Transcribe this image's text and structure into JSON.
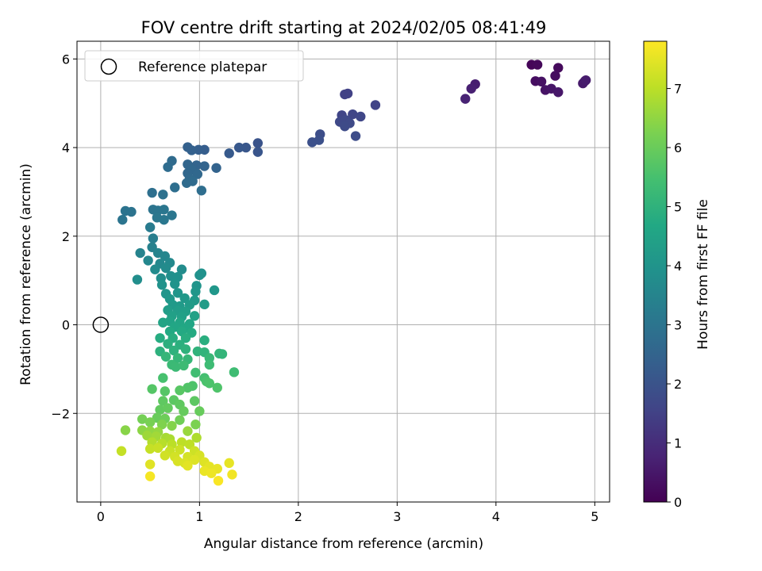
{
  "chart_data": {
    "type": "scatter",
    "title": "FOV centre drift starting at 2024/02/05 08:41:49",
    "xlabel": "Angular distance from reference (arcmin)",
    "ylabel": "Rotation from reference (arcmin)",
    "xlim": [
      -0.24,
      5.15
    ],
    "ylim": [
      -4.0,
      6.4
    ],
    "x_ticks": [
      0,
      1,
      2,
      3,
      4,
      5
    ],
    "y_ticks": [
      -2,
      0,
      2,
      4,
      6
    ],
    "x_tick_labels": [
      "0",
      "1",
      "2",
      "3",
      "4",
      "5"
    ],
    "y_tick_labels": [
      "−2",
      "0",
      "2",
      "4",
      "6"
    ],
    "grid": true,
    "legend": {
      "placement": "top-left",
      "entries": [
        "Reference platepar"
      ]
    },
    "reference_point": {
      "x": 0,
      "y": 0,
      "label": "Reference platepar"
    },
    "colorbar": {
      "label": "Hours from first FF file",
      "colormap": "viridis",
      "range": [
        0,
        7.8
      ],
      "ticks": [
        0,
        1,
        2,
        3,
        4,
        5,
        6,
        7
      ],
      "tick_labels": [
        "0",
        "1",
        "2",
        "3",
        "4",
        "5",
        "6",
        "7"
      ]
    },
    "points": [
      {
        "x": 4.36,
        "y": 5.87,
        "h": 0.1
      },
      {
        "x": 4.42,
        "y": 5.87,
        "h": 0.15
      },
      {
        "x": 4.63,
        "y": 5.8,
        "h": 0.2
      },
      {
        "x": 4.6,
        "y": 5.62,
        "h": 0.25
      },
      {
        "x": 4.4,
        "y": 5.5,
        "h": 0.3
      },
      {
        "x": 4.46,
        "y": 5.49,
        "h": 0.35
      },
      {
        "x": 4.5,
        "y": 5.3,
        "h": 0.4
      },
      {
        "x": 4.56,
        "y": 5.33,
        "h": 0.45
      },
      {
        "x": 4.63,
        "y": 5.25,
        "h": 0.5
      },
      {
        "x": 4.9,
        "y": 5.5,
        "h": 0.5
      },
      {
        "x": 4.88,
        "y": 5.45,
        "h": 0.55
      },
      {
        "x": 4.91,
        "y": 5.52,
        "h": 0.6
      },
      {
        "x": 3.79,
        "y": 5.43,
        "h": 0.65
      },
      {
        "x": 3.75,
        "y": 5.33,
        "h": 0.7
      },
      {
        "x": 3.69,
        "y": 5.1,
        "h": 0.75
      },
      {
        "x": 2.47,
        "y": 5.2,
        "h": 1.5
      },
      {
        "x": 2.5,
        "y": 5.22,
        "h": 1.5
      },
      {
        "x": 2.78,
        "y": 4.96,
        "h": 1.55
      },
      {
        "x": 2.44,
        "y": 4.73,
        "h": 1.6
      },
      {
        "x": 2.55,
        "y": 4.75,
        "h": 1.6
      },
      {
        "x": 2.63,
        "y": 4.7,
        "h": 1.65
      },
      {
        "x": 2.42,
        "y": 4.58,
        "h": 1.7
      },
      {
        "x": 2.48,
        "y": 4.62,
        "h": 1.7
      },
      {
        "x": 2.52,
        "y": 4.55,
        "h": 1.72
      },
      {
        "x": 2.47,
        "y": 4.48,
        "h": 1.75
      },
      {
        "x": 2.58,
        "y": 4.26,
        "h": 1.8
      },
      {
        "x": 2.22,
        "y": 4.3,
        "h": 1.85
      },
      {
        "x": 2.21,
        "y": 4.17,
        "h": 1.9
      },
      {
        "x": 2.14,
        "y": 4.12,
        "h": 1.9
      },
      {
        "x": 1.59,
        "y": 4.1,
        "h": 2.0
      },
      {
        "x": 1.59,
        "y": 3.9,
        "h": 2.05
      },
      {
        "x": 1.47,
        "y": 4.0,
        "h": 2.1
      },
      {
        "x": 1.4,
        "y": 4.0,
        "h": 2.15
      },
      {
        "x": 1.3,
        "y": 3.87,
        "h": 2.2
      },
      {
        "x": 1.05,
        "y": 3.95,
        "h": 2.3
      },
      {
        "x": 0.99,
        "y": 3.95,
        "h": 2.35
      },
      {
        "x": 0.92,
        "y": 3.94,
        "h": 2.4
      },
      {
        "x": 0.88,
        "y": 4.01,
        "h": 2.4
      },
      {
        "x": 1.17,
        "y": 3.54,
        "h": 2.45
      },
      {
        "x": 1.05,
        "y": 3.58,
        "h": 2.5
      },
      {
        "x": 0.97,
        "y": 3.6,
        "h": 2.5
      },
      {
        "x": 0.88,
        "y": 3.62,
        "h": 2.55
      },
      {
        "x": 0.92,
        "y": 3.5,
        "h": 2.6
      },
      {
        "x": 0.88,
        "y": 3.42,
        "h": 2.6
      },
      {
        "x": 0.98,
        "y": 3.4,
        "h": 2.62
      },
      {
        "x": 0.9,
        "y": 3.3,
        "h": 2.65
      },
      {
        "x": 0.93,
        "y": 3.24,
        "h": 2.7
      },
      {
        "x": 0.87,
        "y": 3.2,
        "h": 2.7
      },
      {
        "x": 0.72,
        "y": 3.7,
        "h": 2.72
      },
      {
        "x": 0.68,
        "y": 3.56,
        "h": 2.75
      },
      {
        "x": 1.02,
        "y": 3.03,
        "h": 2.8
      },
      {
        "x": 0.75,
        "y": 3.1,
        "h": 2.82
      },
      {
        "x": 0.52,
        "y": 2.98,
        "h": 2.85
      },
      {
        "x": 0.63,
        "y": 2.94,
        "h": 2.9
      },
      {
        "x": 0.25,
        "y": 2.57,
        "h": 2.95
      },
      {
        "x": 0.31,
        "y": 2.55,
        "h": 2.95
      },
      {
        "x": 0.22,
        "y": 2.37,
        "h": 3.0
      },
      {
        "x": 0.53,
        "y": 2.6,
        "h": 3.0
      },
      {
        "x": 0.58,
        "y": 2.58,
        "h": 3.02
      },
      {
        "x": 0.64,
        "y": 2.6,
        "h": 3.05
      },
      {
        "x": 0.72,
        "y": 2.47,
        "h": 3.05
      },
      {
        "x": 0.57,
        "y": 2.42,
        "h": 3.08
      },
      {
        "x": 0.64,
        "y": 2.37,
        "h": 3.1
      },
      {
        "x": 0.5,
        "y": 2.2,
        "h": 3.2
      },
      {
        "x": 0.53,
        "y": 1.95,
        "h": 3.3
      },
      {
        "x": 0.52,
        "y": 1.75,
        "h": 3.4
      },
      {
        "x": 0.4,
        "y": 1.62,
        "h": 3.45
      },
      {
        "x": 0.58,
        "y": 1.62,
        "h": 3.5
      },
      {
        "x": 0.65,
        "y": 1.55,
        "h": 3.55
      },
      {
        "x": 0.48,
        "y": 1.45,
        "h": 3.6
      },
      {
        "x": 0.6,
        "y": 1.38,
        "h": 3.62
      },
      {
        "x": 0.7,
        "y": 1.4,
        "h": 3.65
      },
      {
        "x": 0.55,
        "y": 1.25,
        "h": 3.7
      },
      {
        "x": 0.66,
        "y": 1.28,
        "h": 3.72
      },
      {
        "x": 0.82,
        "y": 1.25,
        "h": 3.75
      },
      {
        "x": 0.37,
        "y": 1.02,
        "h": 3.8
      },
      {
        "x": 0.61,
        "y": 1.05,
        "h": 3.82
      },
      {
        "x": 0.71,
        "y": 1.1,
        "h": 3.85
      },
      {
        "x": 0.78,
        "y": 1.08,
        "h": 3.88
      },
      {
        "x": 1.0,
        "y": 1.12,
        "h": 3.9
      },
      {
        "x": 1.02,
        "y": 1.16,
        "h": 3.92
      },
      {
        "x": 0.62,
        "y": 0.9,
        "h": 3.95
      },
      {
        "x": 0.75,
        "y": 0.92,
        "h": 3.97
      },
      {
        "x": 0.97,
        "y": 0.88,
        "h": 4.0
      },
      {
        "x": 0.66,
        "y": 0.7,
        "h": 4.02
      },
      {
        "x": 0.78,
        "y": 0.72,
        "h": 4.05
      },
      {
        "x": 0.96,
        "y": 0.75,
        "h": 4.07
      },
      {
        "x": 1.15,
        "y": 0.78,
        "h": 4.1
      },
      {
        "x": 0.7,
        "y": 0.58,
        "h": 4.12
      },
      {
        "x": 0.85,
        "y": 0.6,
        "h": 4.15
      },
      {
        "x": 0.95,
        "y": 0.55,
        "h": 4.17
      },
      {
        "x": 0.73,
        "y": 0.45,
        "h": 4.2
      },
      {
        "x": 0.8,
        "y": 0.42,
        "h": 4.22
      },
      {
        "x": 0.9,
        "y": 0.45,
        "h": 4.25
      },
      {
        "x": 1.05,
        "y": 0.46,
        "h": 4.27
      },
      {
        "x": 0.68,
        "y": 0.33,
        "h": 4.3
      },
      {
        "x": 0.78,
        "y": 0.32,
        "h": 4.32
      },
      {
        "x": 0.86,
        "y": 0.3,
        "h": 4.35
      },
      {
        "x": 0.72,
        "y": 0.2,
        "h": 4.4
      },
      {
        "x": 0.82,
        "y": 0.18,
        "h": 4.42
      },
      {
        "x": 0.95,
        "y": 0.2,
        "h": 4.45
      },
      {
        "x": 0.7,
        "y": 0.08,
        "h": 4.5
      },
      {
        "x": 0.63,
        "y": 0.05,
        "h": 4.55
      },
      {
        "x": 0.8,
        "y": 0.05,
        "h": 4.57
      },
      {
        "x": 0.9,
        "y": 0.02,
        "h": 4.6
      },
      {
        "x": 0.75,
        "y": -0.05,
        "h": 4.62
      },
      {
        "x": 0.85,
        "y": -0.08,
        "h": 4.65
      },
      {
        "x": 0.7,
        "y": -0.15,
        "h": 4.7
      },
      {
        "x": 0.82,
        "y": -0.15,
        "h": 4.72
      },
      {
        "x": 0.92,
        "y": -0.18,
        "h": 4.75
      },
      {
        "x": 0.6,
        "y": -0.3,
        "h": 4.8
      },
      {
        "x": 0.73,
        "y": -0.3,
        "h": 4.82
      },
      {
        "x": 0.86,
        "y": -0.3,
        "h": 4.85
      },
      {
        "x": 1.05,
        "y": -0.35,
        "h": 4.87
      },
      {
        "x": 0.68,
        "y": -0.43,
        "h": 4.9
      },
      {
        "x": 0.8,
        "y": -0.45,
        "h": 4.92
      },
      {
        "x": 0.6,
        "y": -0.6,
        "h": 4.95
      },
      {
        "x": 0.74,
        "y": -0.58,
        "h": 4.97
      },
      {
        "x": 0.86,
        "y": -0.55,
        "h": 5.0
      },
      {
        "x": 0.98,
        "y": -0.6,
        "h": 5.02
      },
      {
        "x": 1.05,
        "y": -0.62,
        "h": 5.05
      },
      {
        "x": 1.2,
        "y": -0.65,
        "h": 5.07
      },
      {
        "x": 1.23,
        "y": -0.66,
        "h": 5.1
      },
      {
        "x": 0.66,
        "y": -0.72,
        "h": 5.12
      },
      {
        "x": 0.78,
        "y": -0.75,
        "h": 5.15
      },
      {
        "x": 0.88,
        "y": -0.78,
        "h": 5.17
      },
      {
        "x": 1.1,
        "y": -0.75,
        "h": 5.2
      },
      {
        "x": 0.72,
        "y": -0.9,
        "h": 5.25
      },
      {
        "x": 0.76,
        "y": -0.95,
        "h": 5.27
      },
      {
        "x": 0.84,
        "y": -0.92,
        "h": 5.3
      },
      {
        "x": 1.1,
        "y": -0.9,
        "h": 5.32
      },
      {
        "x": 1.35,
        "y": -1.07,
        "h": 5.35
      },
      {
        "x": 0.96,
        "y": -1.08,
        "h": 5.4
      },
      {
        "x": 1.05,
        "y": -1.2,
        "h": 5.45
      },
      {
        "x": 0.63,
        "y": -1.2,
        "h": 5.5
      },
      {
        "x": 1.07,
        "y": -1.28,
        "h": 5.55
      },
      {
        "x": 1.1,
        "y": -1.32,
        "h": 5.58
      },
      {
        "x": 0.93,
        "y": -1.38,
        "h": 5.6
      },
      {
        "x": 1.18,
        "y": -1.42,
        "h": 5.62
      },
      {
        "x": 0.88,
        "y": -1.42,
        "h": 5.65
      },
      {
        "x": 0.52,
        "y": -1.45,
        "h": 5.7
      },
      {
        "x": 0.65,
        "y": -1.5,
        "h": 5.72
      },
      {
        "x": 0.8,
        "y": -1.48,
        "h": 5.75
      },
      {
        "x": 0.74,
        "y": -1.7,
        "h": 5.8
      },
      {
        "x": 0.95,
        "y": -1.72,
        "h": 5.82
      },
      {
        "x": 0.63,
        "y": -1.72,
        "h": 5.85
      },
      {
        "x": 0.8,
        "y": -1.8,
        "h": 5.87
      },
      {
        "x": 0.6,
        "y": -1.92,
        "h": 5.9
      },
      {
        "x": 0.68,
        "y": -1.88,
        "h": 5.92
      },
      {
        "x": 0.84,
        "y": -1.95,
        "h": 5.95
      },
      {
        "x": 1.0,
        "y": -1.95,
        "h": 5.97
      },
      {
        "x": 0.57,
        "y": -2.1,
        "h": 6.0
      },
      {
        "x": 0.65,
        "y": -2.12,
        "h": 6.05
      },
      {
        "x": 0.8,
        "y": -2.15,
        "h": 6.1
      },
      {
        "x": 0.42,
        "y": -2.13,
        "h": 6.15
      },
      {
        "x": 0.5,
        "y": -2.2,
        "h": 6.2
      },
      {
        "x": 0.96,
        "y": -2.25,
        "h": 6.25
      },
      {
        "x": 0.62,
        "y": -2.25,
        "h": 6.3
      },
      {
        "x": 0.72,
        "y": -2.28,
        "h": 6.35
      },
      {
        "x": 0.25,
        "y": -2.38,
        "h": 6.4
      },
      {
        "x": 0.42,
        "y": -2.38,
        "h": 6.45
      },
      {
        "x": 0.5,
        "y": -2.4,
        "h": 6.5
      },
      {
        "x": 0.58,
        "y": -2.42,
        "h": 6.55
      },
      {
        "x": 0.88,
        "y": -2.4,
        "h": 6.6
      },
      {
        "x": 0.47,
        "y": -2.5,
        "h": 6.65
      },
      {
        "x": 0.56,
        "y": -2.52,
        "h": 6.7
      },
      {
        "x": 0.66,
        "y": -2.55,
        "h": 6.75
      },
      {
        "x": 0.7,
        "y": -2.58,
        "h": 6.8
      },
      {
        "x": 0.97,
        "y": -2.55,
        "h": 6.85
      },
      {
        "x": 0.52,
        "y": -2.65,
        "h": 6.9
      },
      {
        "x": 0.62,
        "y": -2.68,
        "h": 6.95
      },
      {
        "x": 0.72,
        "y": -2.7,
        "h": 7.0
      },
      {
        "x": 0.82,
        "y": -2.65,
        "h": 7.02
      },
      {
        "x": 0.9,
        "y": -2.7,
        "h": 7.05
      },
      {
        "x": 0.21,
        "y": -2.85,
        "h": 7.1
      },
      {
        "x": 0.5,
        "y": -2.8,
        "h": 7.12
      },
      {
        "x": 0.58,
        "y": -2.78,
        "h": 7.15
      },
      {
        "x": 0.7,
        "y": -2.85,
        "h": 7.17
      },
      {
        "x": 0.8,
        "y": -2.82,
        "h": 7.2
      },
      {
        "x": 0.95,
        "y": -2.85,
        "h": 7.22
      },
      {
        "x": 0.65,
        "y": -2.95,
        "h": 7.25
      },
      {
        "x": 0.75,
        "y": -2.98,
        "h": 7.27
      },
      {
        "x": 0.88,
        "y": -2.98,
        "h": 7.3
      },
      {
        "x": 1.0,
        "y": -2.95,
        "h": 7.32
      },
      {
        "x": 0.78,
        "y": -3.08,
        "h": 7.35
      },
      {
        "x": 0.85,
        "y": -3.12,
        "h": 7.37
      },
      {
        "x": 0.95,
        "y": -3.05,
        "h": 7.4
      },
      {
        "x": 1.05,
        "y": -3.1,
        "h": 7.42
      },
      {
        "x": 0.5,
        "y": -3.15,
        "h": 7.45
      },
      {
        "x": 0.88,
        "y": -3.18,
        "h": 7.47
      },
      {
        "x": 1.1,
        "y": -3.2,
        "h": 7.5
      },
      {
        "x": 1.3,
        "y": -3.12,
        "h": 7.52
      },
      {
        "x": 1.18,
        "y": -3.25,
        "h": 7.55
      },
      {
        "x": 1.05,
        "y": -3.3,
        "h": 7.57
      },
      {
        "x": 1.12,
        "y": -3.35,
        "h": 7.6
      },
      {
        "x": 1.33,
        "y": -3.38,
        "h": 7.65
      },
      {
        "x": 0.5,
        "y": -3.42,
        "h": 7.7
      },
      {
        "x": 1.19,
        "y": -3.52,
        "h": 7.75
      }
    ]
  }
}
